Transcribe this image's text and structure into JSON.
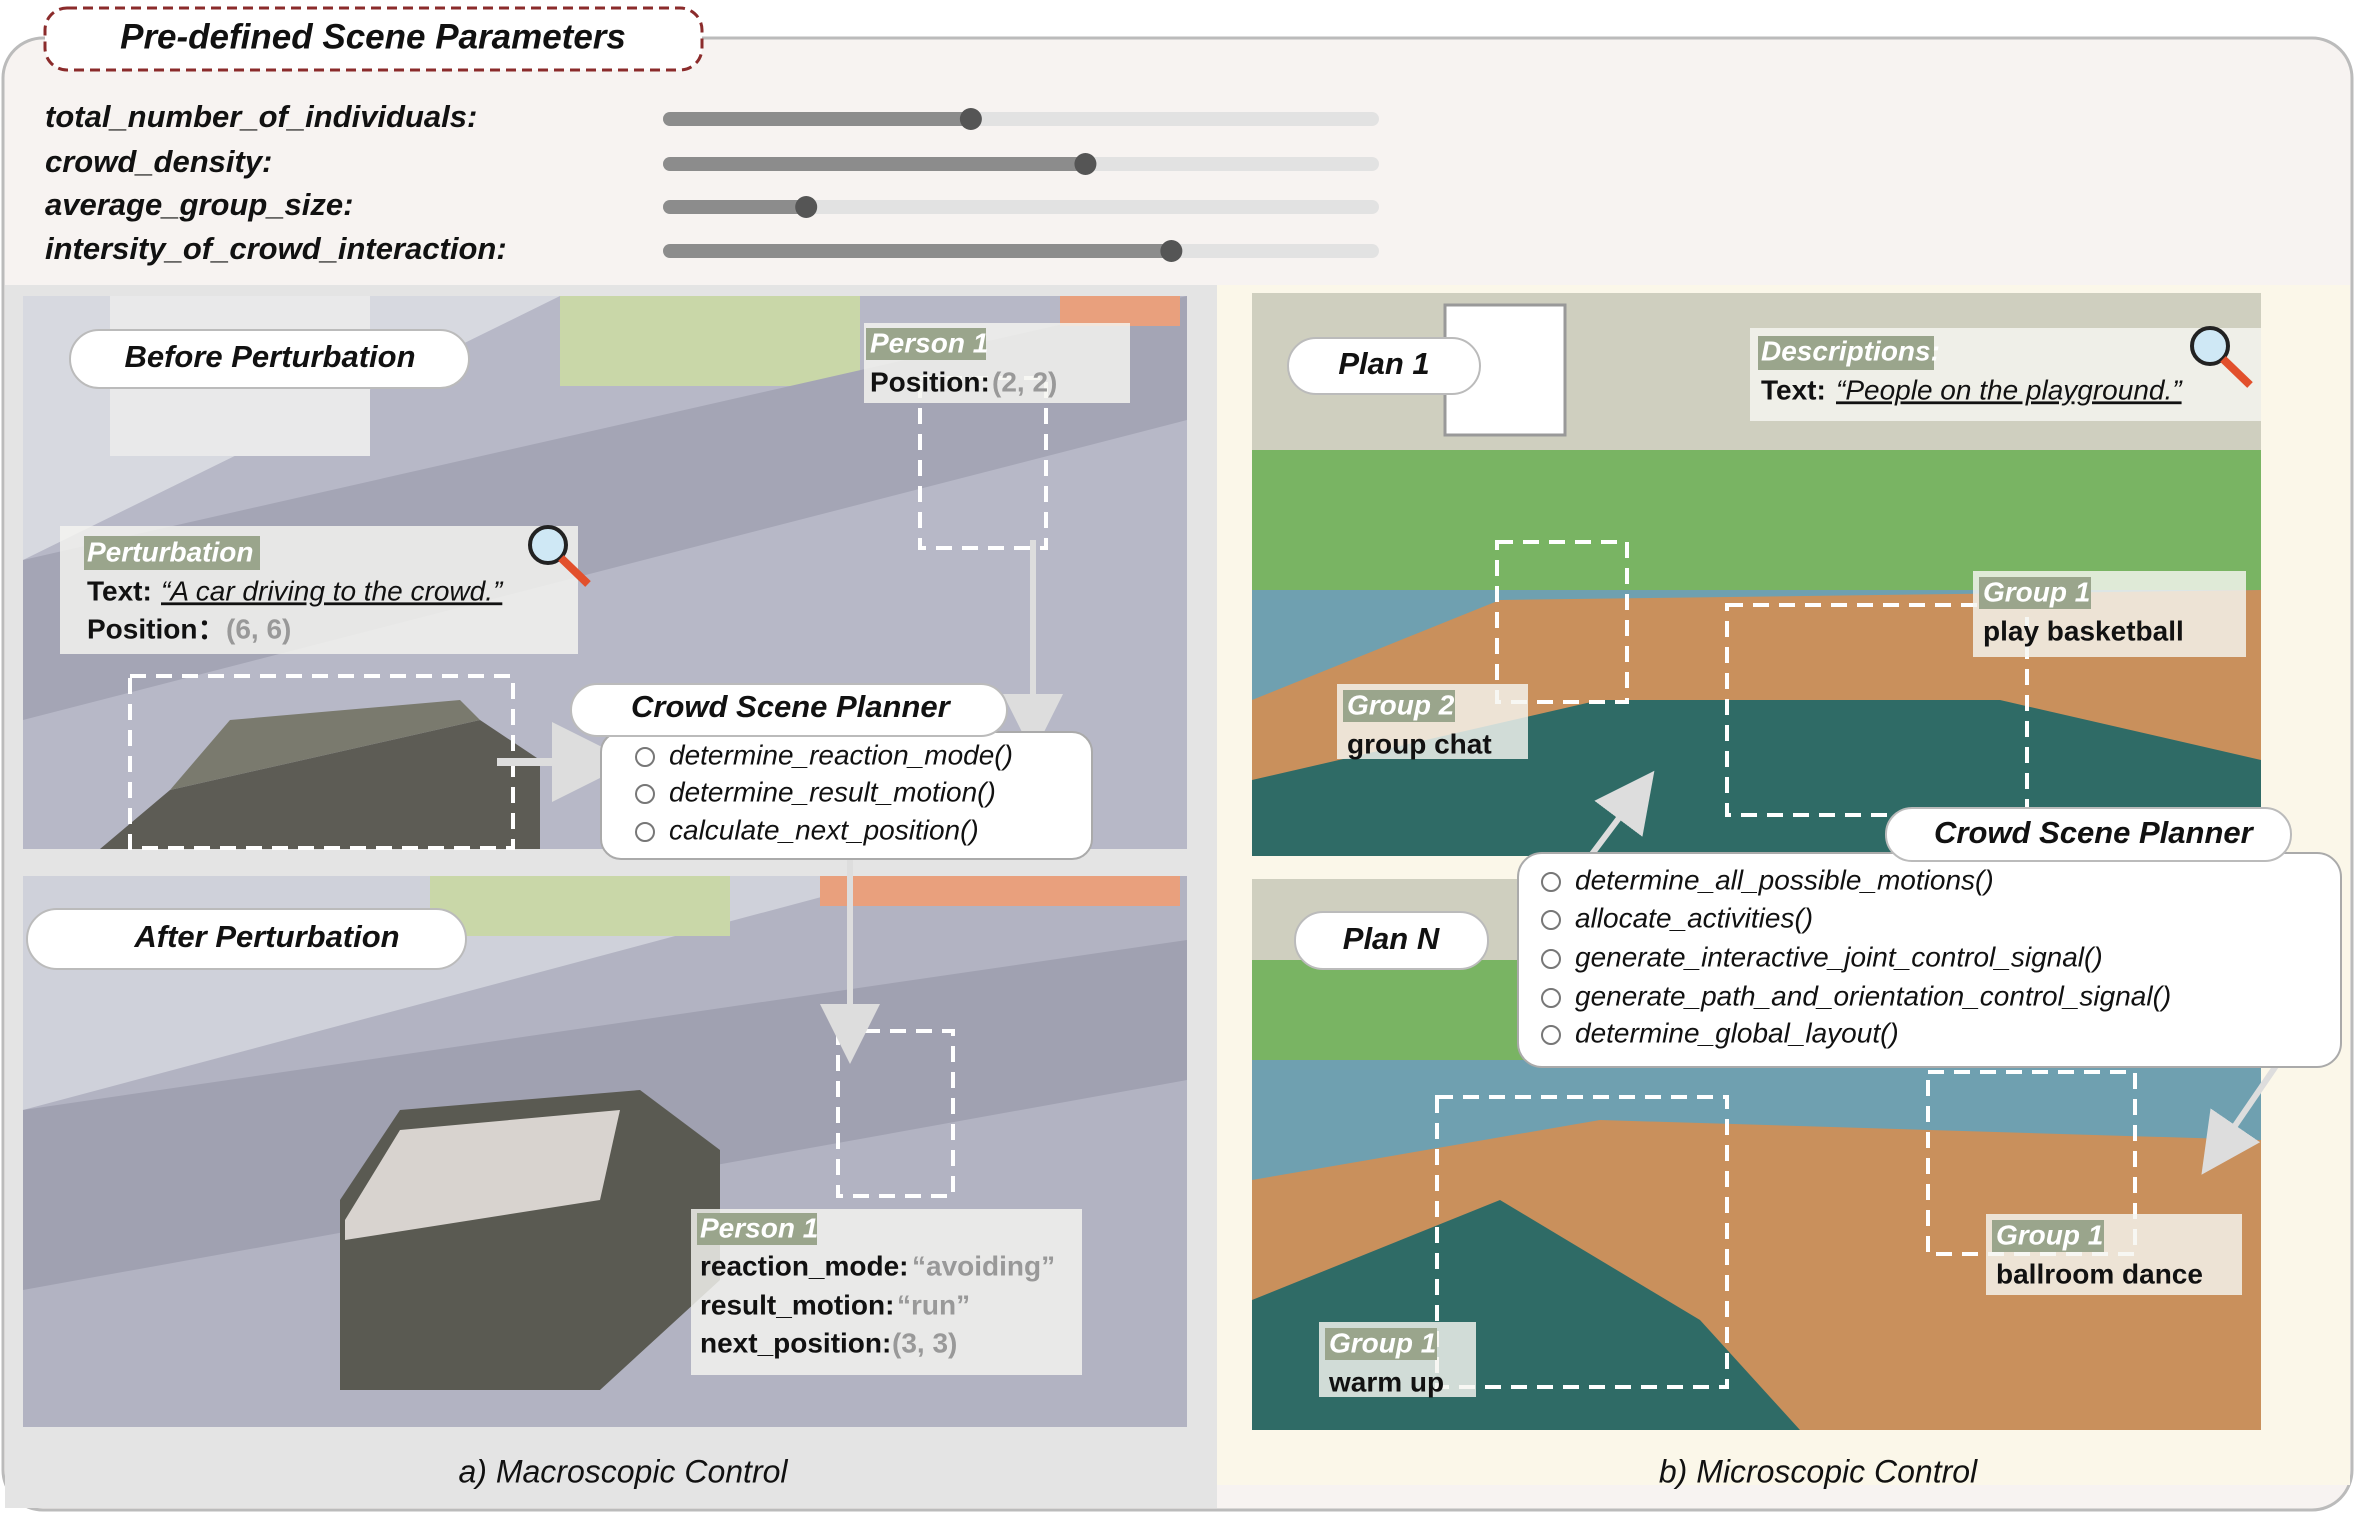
{
  "header": {
    "title": "Pre-defined Scene Parameters"
  },
  "parameters": [
    {
      "label": "total_number_of_individuals:",
      "value": 0.43
    },
    {
      "label": "crowd_density:",
      "value": 0.59
    },
    {
      "label": "average_group_size:",
      "value": 0.2
    },
    {
      "label": "intersity_of_crowd_interaction:",
      "value": 0.71
    }
  ],
  "macro": {
    "before_label": "Before Perturbation",
    "after_label": "After Perturbation",
    "person1_before": {
      "heading": "Person 1",
      "position_label": "Position:",
      "position": "(2, 2)"
    },
    "perturbation": {
      "heading": "Perturbation",
      "text_label": "Text:",
      "text": "“A car driving to the crowd.”",
      "position_label": "Position：",
      "position": "(6, 6)"
    },
    "planner": {
      "title": "Crowd Scene Planner",
      "functions": [
        "determine_reaction_mode()",
        "determine_result_motion()",
        "calculate_next_position()"
      ]
    },
    "person1_after": {
      "heading": "Person 1",
      "rows": [
        {
          "key": "reaction_mode:",
          "value": "“avoiding”"
        },
        {
          "key": "result_motion:",
          "value": "“run”"
        },
        {
          "key": "next_position:",
          "value": "(3, 3)"
        }
      ]
    },
    "caption": "a) Macroscopic Control"
  },
  "micro": {
    "plan1": "Plan 1",
    "planN": "Plan N",
    "descriptions": {
      "heading": "Descriptions:",
      "text_label": "Text:",
      "text": "“People on the playground.”"
    },
    "groups": [
      {
        "heading": "Group 1",
        "text": "play basketball"
      },
      {
        "heading": "Group 2",
        "text": "group chat"
      },
      {
        "heading": "Group 1",
        "text": "ballroom dance"
      },
      {
        "heading": "Group 1",
        "text": "warm up"
      }
    ],
    "planner": {
      "title": "Crowd Scene Planner",
      "functions": [
        "determine_all_possible_motions()",
        "allocate_activities()",
        "generate_interactive_joint_control_signal()",
        "generate_path_and_orientation_control_signal()",
        "determine_global_layout()"
      ]
    },
    "caption": "b) Microscopic Control"
  }
}
